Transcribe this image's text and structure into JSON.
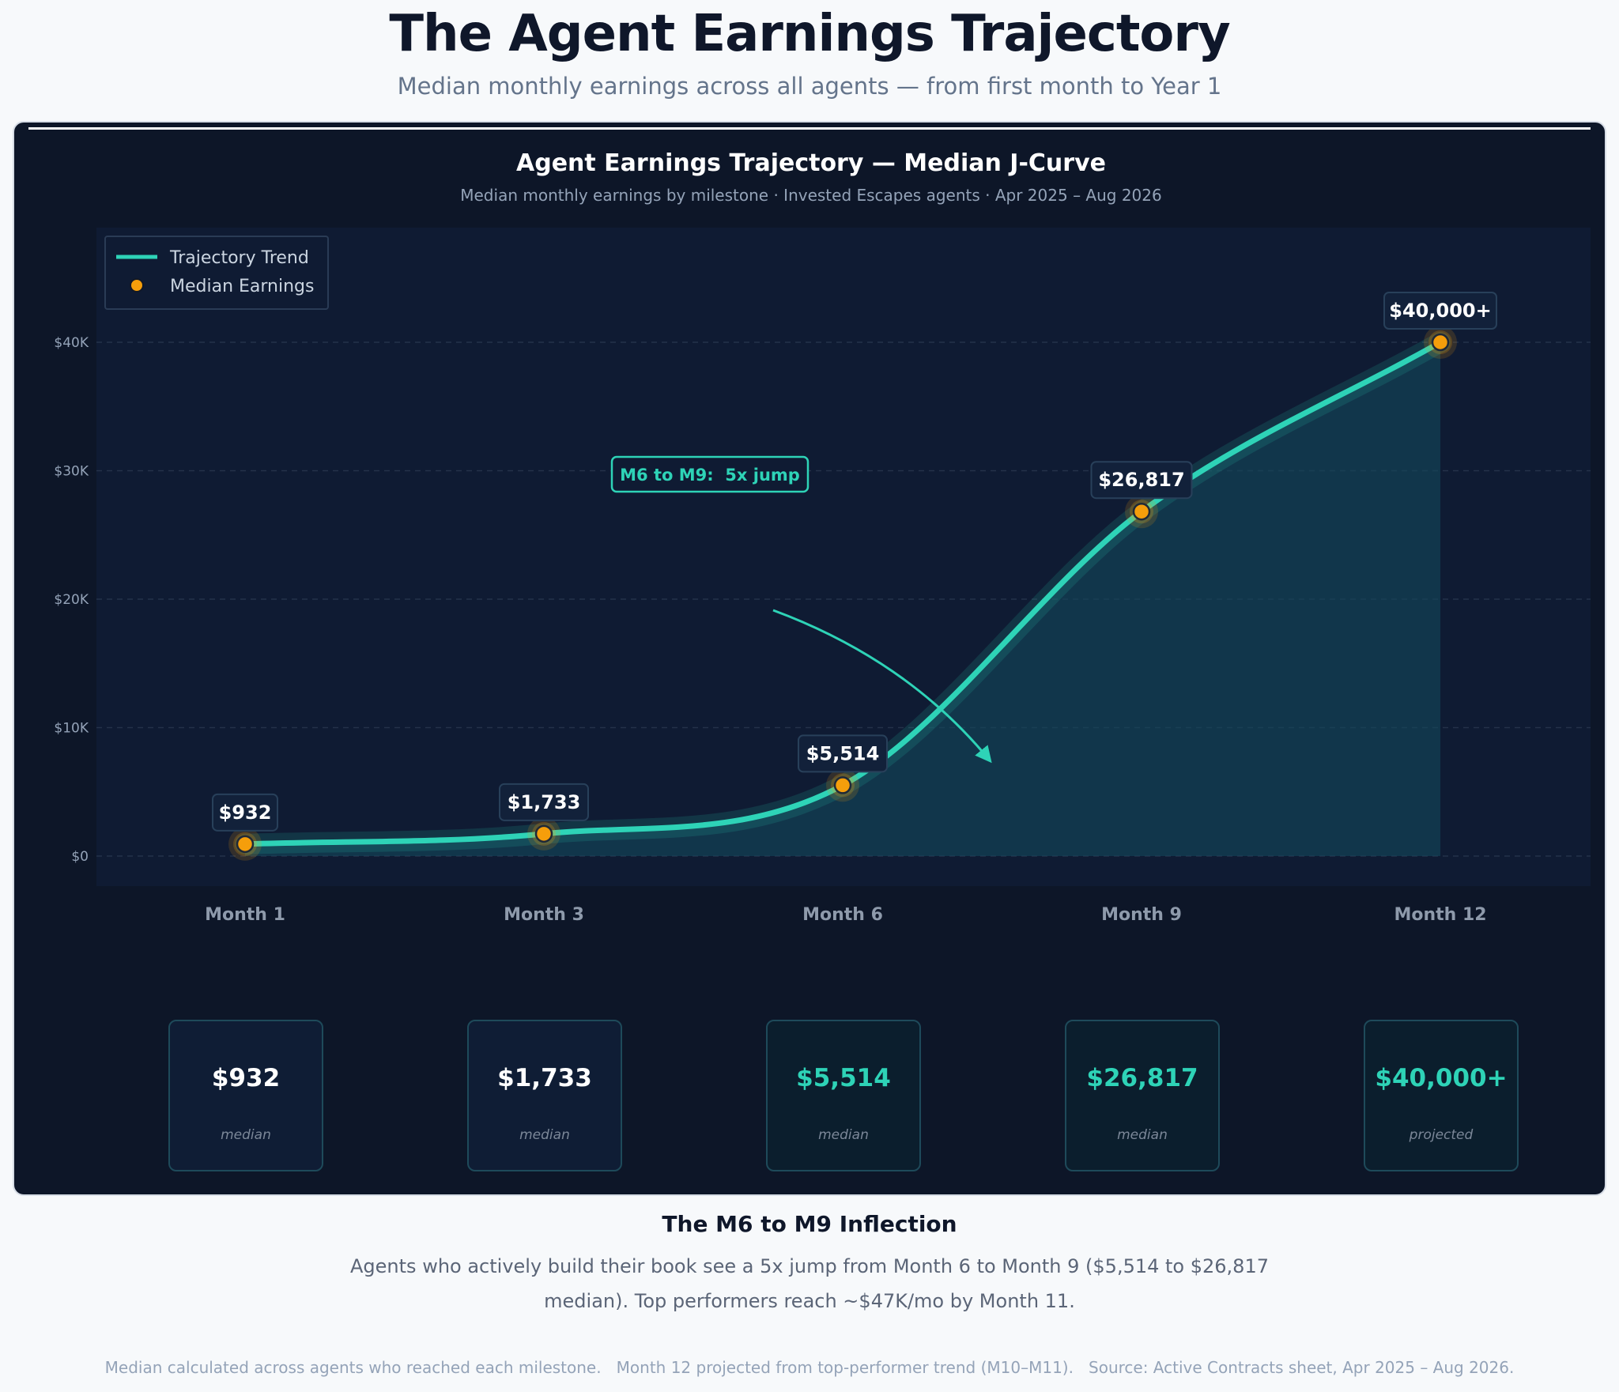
{
  "page": {
    "title": "The Agent Earnings Trajectory",
    "subtitle": "Median monthly earnings across all agents — from first month to Year 1"
  },
  "chart_data": {
    "type": "line",
    "title": "Agent Earnings Trajectory — Median J-Curve",
    "subtitle": "Median monthly earnings by milestone · Invested Escapes agents · Apr 2025 – Aug 2026",
    "categories": [
      "Month 1",
      "Month 3",
      "Month 6",
      "Month 9",
      "Month 12"
    ],
    "series": [
      {
        "name": "Median Earnings",
        "values": [
          932,
          1733,
          5514,
          26817,
          40000
        ]
      }
    ],
    "trend_name": "Trajectory Trend",
    "data_labels": [
      "$932",
      "$1,733",
      "$5,514",
      "$26,817",
      "$40,000+"
    ],
    "y_ticks": [
      0,
      10000,
      20000,
      30000,
      40000
    ],
    "y_tick_labels": [
      "$0",
      "$10K",
      "$20K",
      "$30K",
      "$40K"
    ],
    "ylim": [
      0,
      48000
    ],
    "grid": true,
    "legend_position": "top-left",
    "annotation": {
      "text": "M6 to M9:  5x jump"
    },
    "colors": {
      "trend": "#2ed3b7",
      "marker": "#f59e0b",
      "plot_bg": "#0f1b33",
      "panel_bg": "#0d1628",
      "grid": "#24324a"
    }
  },
  "cards": [
    {
      "value": "$932",
      "note": "median",
      "accent": false
    },
    {
      "value": "$1,733",
      "note": "median",
      "accent": false
    },
    {
      "value": "$5,514",
      "note": "median",
      "accent": true
    },
    {
      "value": "$26,817",
      "note": "median",
      "accent": true
    },
    {
      "value": "$40,000+",
      "note": "projected",
      "accent": true
    }
  ],
  "insight": {
    "title": "The M6 to M9 Inflection",
    "body": "Agents who actively build their book see a 5x jump from Month 6 to Month 9 ($5,514 to $26,817 median). Top performers reach ~$47K/mo by Month 11."
  },
  "footnote": "Median calculated across agents who reached each milestone.   Month 12 projected from top-performer trend (M10–M11).   Source: Active Contracts sheet, Apr 2025 – Aug 2026."
}
